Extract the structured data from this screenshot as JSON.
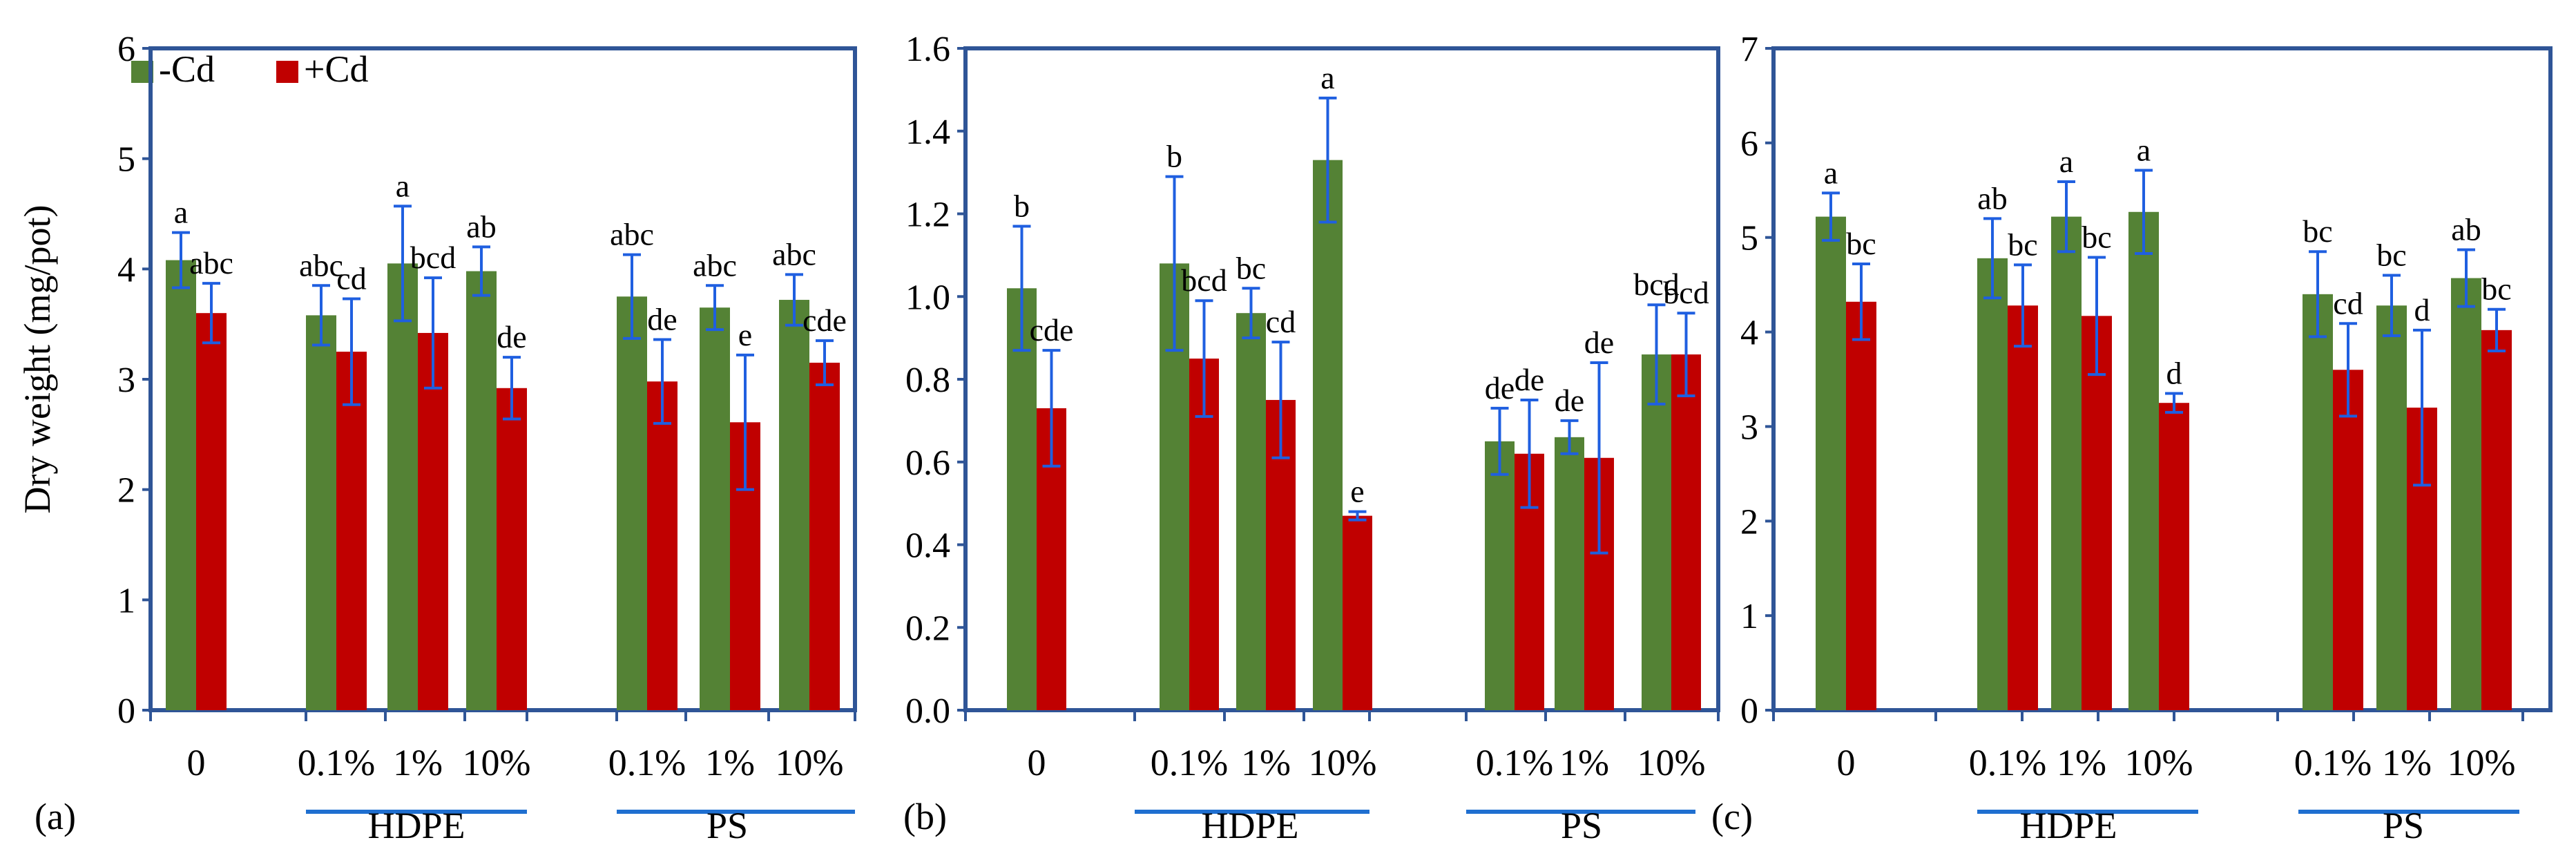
{
  "ylabel": "Dry weight (mg/pot)",
  "legend": [
    {
      "label": "-Cd",
      "color": "#548235"
    },
    {
      "label": "+Cd",
      "color": "#C00000"
    }
  ],
  "colors": {
    "minus_cd": "#548235",
    "plus_cd": "#C00000",
    "error_bar": "#1F5FE0",
    "axis": "#2F5597",
    "group_line": "#1F6FD0"
  },
  "chart_data": [
    {
      "type": "bar",
      "panel": "(a)",
      "ylim": [
        0,
        6
      ],
      "yticks": [
        "0",
        "1",
        "2",
        "3",
        "4",
        "5",
        "6"
      ],
      "categories": [
        "0",
        "0.1%",
        "1%",
        "10%",
        "0.1%",
        "1%",
        "10%"
      ],
      "groups": [
        "HDPE",
        "PS"
      ],
      "series": [
        {
          "name": "-Cd",
          "values": [
            4.08,
            3.58,
            4.05,
            3.98,
            3.75,
            3.65,
            3.72
          ],
          "err": [
            0.25,
            0.27,
            0.52,
            0.22,
            0.38,
            0.2,
            0.23
          ],
          "labels": [
            "a",
            "abc",
            "a",
            "ab",
            "abc",
            "abc",
            "abc"
          ]
        },
        {
          "name": "+Cd",
          "values": [
            3.6,
            3.25,
            3.42,
            2.92,
            2.98,
            2.61,
            3.15
          ],
          "err": [
            0.27,
            0.48,
            0.5,
            0.28,
            0.38,
            0.61,
            0.2
          ],
          "labels": [
            "abc",
            "cd",
            "bcd",
            "de",
            "de",
            "e",
            "cde"
          ]
        }
      ]
    },
    {
      "type": "bar",
      "panel": "(b)",
      "ylim": [
        0,
        1.6
      ],
      "yticks": [
        "0.0",
        "0.2",
        "0.4",
        "0.6",
        "0.8",
        "1.0",
        "1.2",
        "1.4",
        "1.6"
      ],
      "categories": [
        "0",
        "0.1%",
        "1%",
        "10%",
        "0.1%",
        "1%",
        "10%"
      ],
      "groups": [
        "HDPE",
        "PS"
      ],
      "series": [
        {
          "name": "-Cd",
          "values": [
            1.02,
            1.08,
            0.96,
            1.33,
            0.65,
            0.66,
            0.86
          ],
          "err": [
            0.15,
            0.21,
            0.06,
            0.15,
            0.08,
            0.04,
            0.12
          ],
          "labels": [
            "b",
            "b",
            "bc",
            "a",
            "de",
            "de",
            "bcd"
          ]
        },
        {
          "name": "+Cd",
          "values": [
            0.73,
            0.85,
            0.75,
            0.47,
            0.62,
            0.61,
            0.86
          ],
          "err": [
            0.14,
            0.14,
            0.14,
            0.01,
            0.13,
            0.23,
            0.1
          ],
          "labels": [
            "cde",
            "bcd",
            "cd",
            "e",
            "de",
            "de",
            "bcd"
          ]
        }
      ]
    },
    {
      "type": "bar",
      "panel": "(c)",
      "ylim": [
        0,
        7
      ],
      "yticks": [
        "0",
        "1",
        "2",
        "3",
        "4",
        "5",
        "6",
        "7"
      ],
      "categories": [
        "0",
        "0.1%",
        "1%",
        "10%",
        "0.1%",
        "1%",
        "10%"
      ],
      "groups": [
        "HDPE",
        "PS"
      ],
      "series": [
        {
          "name": "-Cd",
          "values": [
            5.22,
            4.78,
            5.22,
            5.27,
            4.4,
            4.28,
            4.57
          ],
          "err": [
            0.25,
            0.42,
            0.37,
            0.44,
            0.45,
            0.32,
            0.3
          ],
          "labels": [
            "a",
            "ab",
            "a",
            "a",
            "bc",
            "bc",
            "ab"
          ]
        },
        {
          "name": "+Cd",
          "values": [
            4.32,
            4.28,
            4.17,
            3.25,
            3.6,
            3.2,
            4.02
          ],
          "err": [
            0.4,
            0.43,
            0.62,
            0.1,
            0.49,
            0.82,
            0.22
          ],
          "labels": [
            "bc",
            "bc",
            "bc",
            "d",
            "cd",
            "d",
            "bc"
          ]
        }
      ]
    }
  ]
}
